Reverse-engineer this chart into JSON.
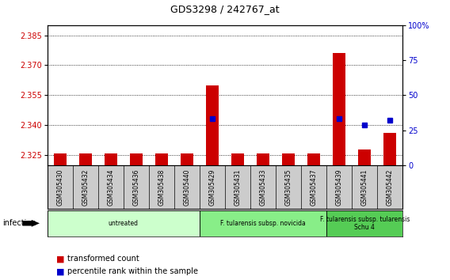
{
  "title": "GDS3298 / 242767_at",
  "samples": [
    "GSM305430",
    "GSM305432",
    "GSM305434",
    "GSM305436",
    "GSM305438",
    "GSM305440",
    "GSM305429",
    "GSM305431",
    "GSM305433",
    "GSM305435",
    "GSM305437",
    "GSM305439",
    "GSM305441",
    "GSM305442"
  ],
  "transformed_count": [
    2.326,
    2.326,
    2.326,
    2.326,
    2.326,
    2.326,
    2.36,
    2.326,
    2.326,
    2.326,
    2.326,
    2.376,
    2.328,
    2.336
  ],
  "percentile_rank": [
    2,
    2,
    2,
    2,
    2,
    2,
    33,
    2,
    2,
    2,
    2,
    33,
    29,
    32
  ],
  "ylim_left": [
    2.32,
    2.39
  ],
  "ylim_right": [
    0,
    100
  ],
  "yticks_left": [
    2.325,
    2.34,
    2.355,
    2.37,
    2.385
  ],
  "yticks_right": [
    0,
    25,
    50,
    75,
    100
  ],
  "groups": [
    {
      "label": "untreated",
      "start": 0,
      "end": 6,
      "color": "#ccffcc"
    },
    {
      "label": "F. tularensis subsp. novicida",
      "start": 6,
      "end": 11,
      "color": "#88ee88"
    },
    {
      "label": "F. tularensis subsp. tularensis\nSchu 4",
      "start": 11,
      "end": 14,
      "color": "#55cc55"
    }
  ],
  "infection_label": "infection",
  "red_color": "#cc0000",
  "blue_color": "#0000cc",
  "background_color": "#ffffff",
  "plot_bg": "#ffffff",
  "label_red": "transformed count",
  "label_blue": "percentile rank within the sample",
  "label_bg": "#cccccc"
}
